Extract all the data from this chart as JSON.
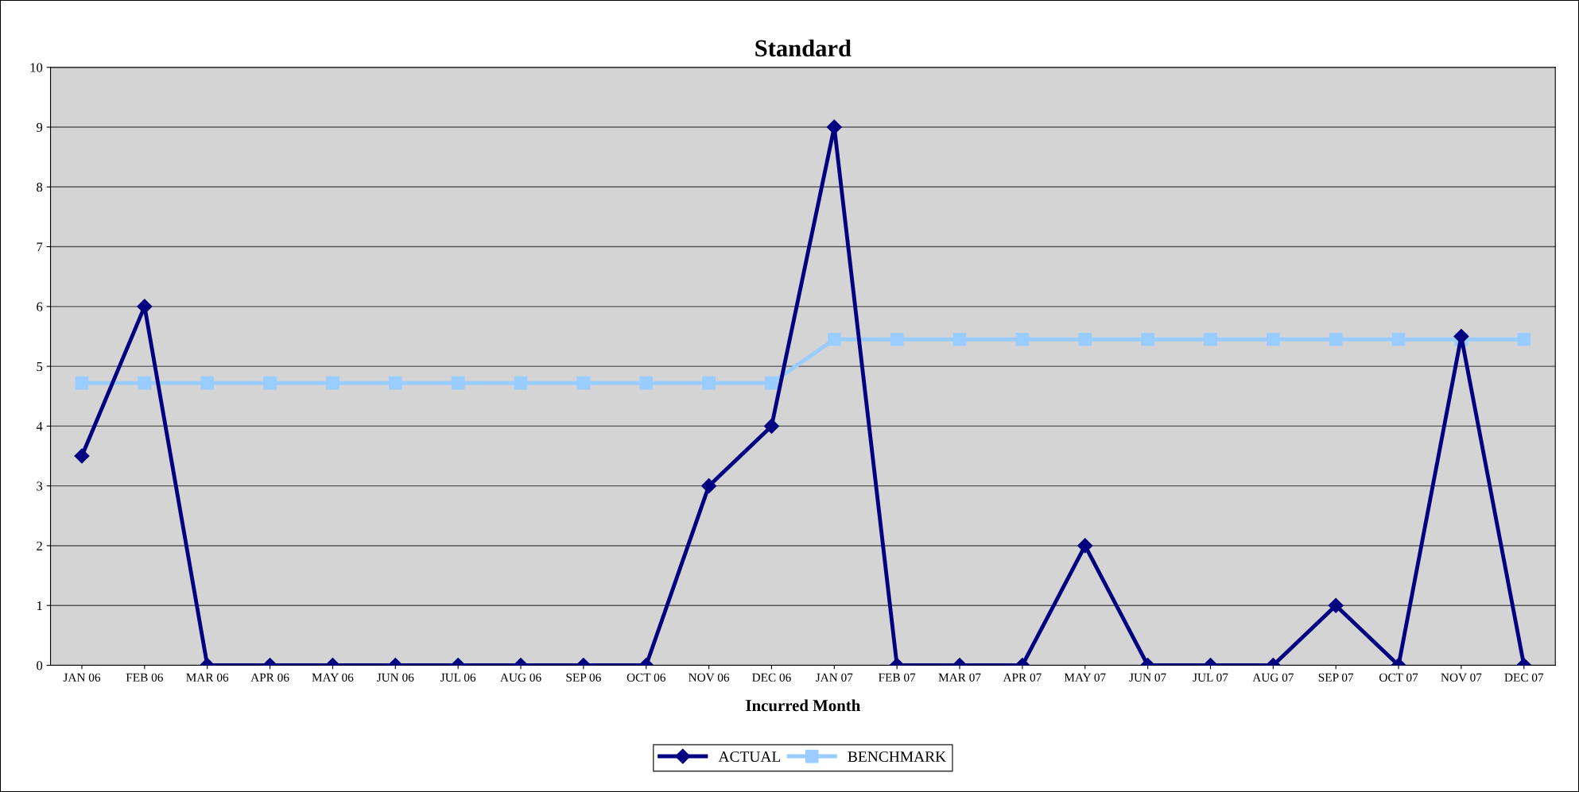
{
  "chart_data": {
    "type": "line",
    "title": "Standard",
    "xlabel": "Incurred Month",
    "categories": [
      "JAN 06",
      "FEB 06",
      "MAR 06",
      "APR 06",
      "MAY 06",
      "JUN 06",
      "JUL 06",
      "AUG 06",
      "SEP 06",
      "OCT 06",
      "NOV 06",
      "DEC 06",
      "JAN 07",
      "FEB 07",
      "MAR 07",
      "APR 07",
      "MAY 07",
      "JUN 07",
      "JUL 07",
      "AUG 07",
      "SEP 07",
      "OCT 07",
      "NOV 07",
      "DEC 07"
    ],
    "series": [
      {
        "name": "ACTUAL",
        "color": "#000080",
        "marker": "diamond",
        "values": [
          3.5,
          6,
          0,
          0,
          0,
          0,
          0,
          0,
          0,
          0,
          3,
          4,
          9,
          0,
          0,
          0,
          2,
          0,
          0,
          0,
          1,
          0,
          5.5,
          0
        ]
      },
      {
        "name": "BENCHMARK",
        "color": "#99ccff",
        "marker": "square",
        "values": [
          4.72,
          4.72,
          4.72,
          4.72,
          4.72,
          4.72,
          4.72,
          4.72,
          4.72,
          4.72,
          4.72,
          4.72,
          5.45,
          5.45,
          5.45,
          5.45,
          5.45,
          5.45,
          5.45,
          5.45,
          5.45,
          5.45,
          5.45,
          5.45
        ]
      }
    ],
    "ylim": [
      0,
      10
    ],
    "yticks": [
      0,
      1,
      2,
      3,
      4,
      5,
      6,
      7,
      8,
      9,
      10
    ],
    "grid": "y",
    "legend": "bottom",
    "line_style": "solid"
  }
}
